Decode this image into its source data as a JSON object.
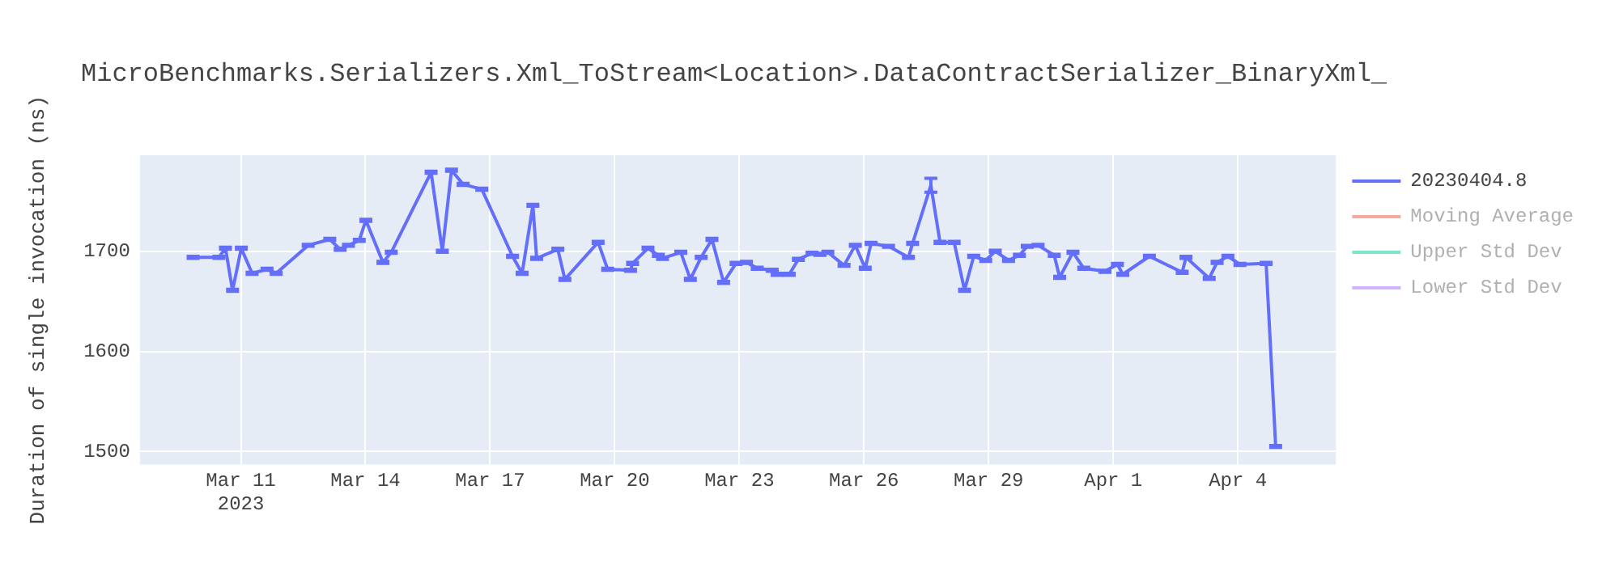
{
  "chart_data": {
    "type": "line",
    "title": "MicroBenchmarks.Serializers.Xml_ToStream<Location>.DataContractSerializer_BinaryXml_",
    "ylabel": "Duration of single invocation (ns)",
    "x": [
      "2023-03-09T20:24",
      "2023-03-10T11:17",
      "2023-03-10T15:07",
      "2023-03-10T19:12",
      "2023-03-11T00:15",
      "2023-03-11T06:29",
      "2023-03-11T15:07",
      "2023-03-11T20:24",
      "2023-03-12T14:53",
      "2023-03-13T03:22",
      "2023-03-13T09:22",
      "2023-03-13T14:10",
      "2023-03-13T20:24",
      "2023-03-14T00:14",
      "2023-03-14T10:05",
      "2023-03-14T14:53",
      "2023-03-15T13:55",
      "2023-03-15T20:24",
      "2023-03-16T01:41",
      "2023-03-16T08:24",
      "2023-03-16T19:12",
      "2023-03-17T12:58",
      "2023-03-17T18:29",
      "2023-03-18T00:43",
      "2023-03-18T02:53",
      "2023-03-18T15:07",
      "2023-03-18T19:12",
      "2023-03-19T14:24",
      "2023-03-19T19:55",
      "2023-03-20T09:07",
      "2023-03-20T10:19",
      "2023-03-20T19:12",
      "2023-03-21T01:12",
      "2023-03-21T03:36",
      "2023-03-21T14:10",
      "2023-03-21T19:41",
      "2023-03-22T01:55",
      "2023-03-22T08:10",
      "2023-03-22T14:53",
      "2023-03-22T22:05",
      "2023-03-23T04:05",
      "2023-03-23T10:19",
      "2023-03-23T18:58",
      "2023-03-23T21:50",
      "2023-03-24T04:48",
      "2023-03-24T10:05",
      "2023-03-24T18:00",
      "2023-03-24T22:34",
      "2023-03-25T03:07",
      "2023-03-25T12:29",
      "2023-03-25T18:58",
      "2023-03-26T00:43",
      "2023-03-26T04:05",
      "2023-03-26T14:10",
      "2023-03-27T01:41",
      "2023-03-27T04:05",
      "2023-03-27T14:38",
      "2023-03-27T19:55",
      "2023-03-28T04:05",
      "2023-03-28T10:05",
      "2023-03-28T15:22",
      "2023-03-28T22:19",
      "2023-03-29T03:50",
      "2023-03-29T11:31",
      "2023-03-29T17:46",
      "2023-03-29T22:19",
      "2023-03-30T04:34",
      "2023-03-30T13:55",
      "2023-03-30T17:02",
      "2023-03-31T00:43",
      "2023-03-31T06:58",
      "2023-03-31T19:12",
      "2023-04-01T02:24",
      "2023-04-01T05:31",
      "2023-04-01T20:53",
      "2023-04-02T15:50",
      "2023-04-02T18:00",
      "2023-04-03T07:26",
      "2023-04-03T12:00",
      "2023-04-03T18:14",
      "2023-04-04T01:12",
      "2023-04-04T16:19",
      "2023-04-04T21:50"
    ],
    "series": [
      {
        "name": "20230404.8",
        "color": "#636efa",
        "values": [
          1694,
          1694,
          1703,
          1661,
          1703,
          1678,
          1682,
          1678,
          1706,
          1712,
          1702,
          1706,
          1711,
          1731,
          1689,
          1699,
          1779,
          1700,
          1781,
          1767,
          1762,
          1695,
          1678,
          1746,
          1693,
          1702,
          1672,
          1709,
          1682,
          1681,
          1688,
          1703,
          1696,
          1693,
          1699,
          1672,
          1694,
          1712,
          1669,
          1688,
          1689,
          1683,
          1681,
          1677,
          1677,
          1692,
          1698,
          1697,
          1699,
          1686,
          1706,
          1683,
          1708,
          1705,
          1694,
          1708,
          1766,
          1709,
          1709,
          1661,
          1695,
          1691,
          1700,
          1691,
          1696,
          1705,
          1706,
          1696,
          1674,
          1699,
          1683,
          1680,
          1687,
          1677,
          1695,
          1679,
          1694,
          1673,
          1689,
          1695,
          1687,
          1688,
          1505
        ],
        "errors": [
          1,
          1,
          1,
          1,
          1,
          1,
          1,
          1,
          1,
          1,
          1,
          1,
          1,
          1,
          1,
          1,
          1,
          1,
          1,
          1,
          1,
          1,
          1,
          1,
          1,
          1,
          1,
          1,
          1,
          1,
          1,
          1,
          1,
          1,
          1,
          1,
          1,
          1,
          1,
          1,
          1,
          1,
          1,
          1,
          1,
          1,
          1,
          1,
          1,
          1,
          1,
          1,
          1,
          1,
          1,
          1,
          7,
          1,
          1,
          1,
          1,
          1,
          1,
          1,
          1,
          1,
          1,
          1,
          1,
          1,
          1,
          1,
          1,
          1,
          1,
          1,
          1,
          1,
          1,
          1,
          1,
          1,
          1
        ]
      },
      {
        "name": "Moving Average",
        "color": "#f6aa9d",
        "values": [
          null,
          null,
          null,
          null,
          null,
          null,
          null,
          null,
          null,
          null,
          null,
          null,
          null,
          null,
          null,
          null,
          null,
          null,
          null,
          null,
          null,
          null,
          null,
          null,
          null,
          null,
          null,
          null,
          null,
          null,
          null,
          null,
          null,
          null,
          null,
          null,
          null,
          null,
          null,
          null,
          null,
          null,
          null,
          null,
          null,
          null,
          null,
          null,
          null,
          null,
          null,
          null,
          null,
          null,
          null,
          null,
          null,
          null,
          null,
          null,
          null,
          null,
          null,
          null,
          null,
          null,
          null,
          null,
          null,
          null,
          null,
          null,
          null,
          null,
          null,
          null,
          null,
          null,
          null,
          null,
          null,
          null,
          null
        ]
      },
      {
        "name": "Upper Std Dev",
        "color": "#80e5cb",
        "values": [
          null,
          null,
          null,
          null,
          null,
          null,
          null,
          null,
          null,
          null,
          null,
          null,
          null,
          null,
          null,
          null,
          null,
          null,
          null,
          null,
          null,
          null,
          null,
          null,
          null,
          null,
          null,
          null,
          null,
          null,
          null,
          null,
          null,
          null,
          null,
          null,
          null,
          null,
          null,
          null,
          null,
          null,
          null,
          null,
          null,
          null,
          null,
          null,
          null,
          null,
          null,
          null,
          null,
          null,
          null,
          null,
          null,
          null,
          null,
          null,
          null,
          null,
          null,
          null,
          null,
          null,
          null,
          null,
          null,
          null,
          null,
          null,
          null,
          null,
          null,
          null,
          null,
          null,
          null,
          null,
          null,
          null,
          null
        ]
      },
      {
        "name": "Lower Std Dev",
        "color": "#d5b1fc",
        "values": [
          null,
          null,
          null,
          null,
          null,
          null,
          null,
          null,
          null,
          null,
          null,
          null,
          null,
          null,
          null,
          null,
          null,
          null,
          null,
          null,
          null,
          null,
          null,
          null,
          null,
          null,
          null,
          null,
          null,
          null,
          null,
          null,
          null,
          null,
          null,
          null,
          null,
          null,
          null,
          null,
          null,
          null,
          null,
          null,
          null,
          null,
          null,
          null,
          null,
          null,
          null,
          null,
          null,
          null,
          null,
          null,
          null,
          null,
          null,
          null,
          null,
          null,
          null,
          null,
          null,
          null,
          null,
          null,
          null,
          null,
          null,
          null,
          null,
          null,
          null,
          null,
          null,
          null,
          null,
          null,
          null,
          null,
          null
        ]
      }
    ],
    "xlim": [
      "2023-03-08T13:40",
      "2023-04-06T08:40"
    ],
    "xticks": [
      {
        "value": "2023-03-11",
        "label": "Mar 11\n2023"
      },
      {
        "value": "2023-03-14",
        "label": "Mar 14"
      },
      {
        "value": "2023-03-17",
        "label": "Mar 17"
      },
      {
        "value": "2023-03-20",
        "label": "Mar 20"
      },
      {
        "value": "2023-03-23",
        "label": "Mar 23"
      },
      {
        "value": "2023-03-26",
        "label": "Mar 26"
      },
      {
        "value": "2023-03-29",
        "label": "Mar 29"
      },
      {
        "value": "2023-04-01",
        "label": "Apr 1"
      },
      {
        "value": "2023-04-04",
        "label": "Apr 4"
      }
    ],
    "ylim": [
      1487,
      1796
    ],
    "yticks": [
      1500,
      1600,
      1700
    ],
    "grid": true,
    "legend": "right",
    "marker": "none",
    "line_style": "solid"
  }
}
